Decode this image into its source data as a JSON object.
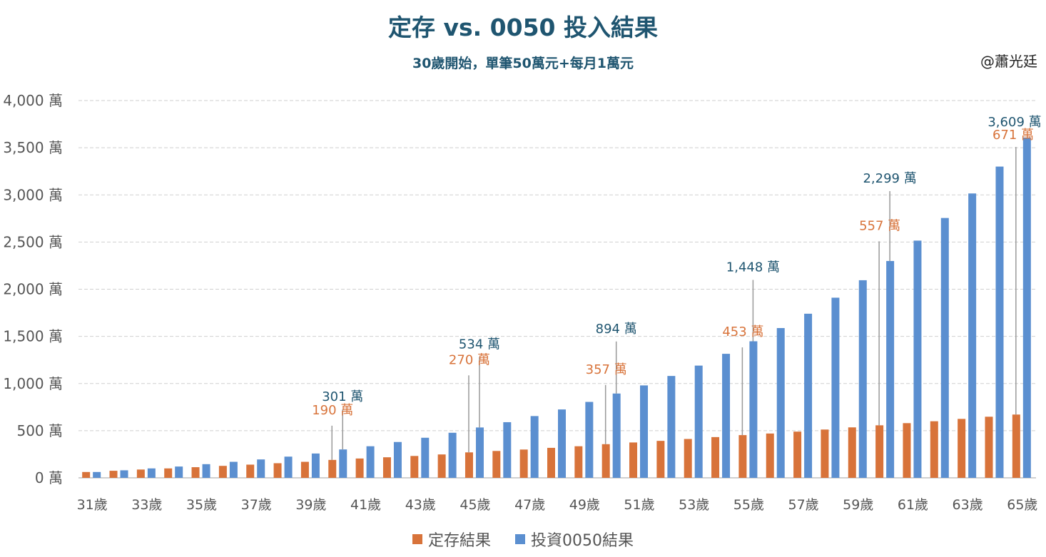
{
  "chart_data": {
    "type": "bar",
    "title": "定存 vs. 0050 投入結果",
    "subtitle": "30歲開始，單筆50萬元+每月1萬元",
    "watermark": "@蕭光廷",
    "unit": "萬",
    "categories": [
      "31歲",
      "32歲",
      "33歲",
      "34歲",
      "35歲",
      "36歲",
      "37歲",
      "38歲",
      "39歲",
      "40歲",
      "41歲",
      "42歲",
      "43歲",
      "44歲",
      "45歲",
      "46歲",
      "47歲",
      "48歲",
      "49歲",
      "50歲",
      "51歲",
      "52歲",
      "53歲",
      "54歲",
      "55歲",
      "56歲",
      "57歲",
      "58歲",
      "59歲",
      "60歲",
      "61歲",
      "62歲",
      "63歲",
      "64歲",
      "65歲"
    ],
    "series": [
      {
        "name": "定存結果",
        "color": "#D8733A",
        "values": [
          62,
          75,
          88,
          100,
          113,
          127,
          140,
          155,
          170,
          190,
          205,
          218,
          232,
          248,
          270,
          285,
          300,
          318,
          335,
          357,
          375,
          392,
          412,
          432,
          453,
          470,
          490,
          512,
          535,
          557,
          580,
          600,
          625,
          648,
          671
        ]
      },
      {
        "name": "投資0050結果",
        "color": "#5B8FD0",
        "values": [
          62,
          80,
          100,
          120,
          145,
          170,
          195,
          225,
          258,
          301,
          335,
          380,
          425,
          478,
          534,
          590,
          655,
          725,
          805,
          894,
          980,
          1080,
          1190,
          1315,
          1448,
          1588,
          1740,
          1910,
          2095,
          2299,
          2515,
          2755,
          3015,
          3300,
          3609
        ]
      }
    ],
    "data_labels": [
      {
        "category": "40歲",
        "orange": "190 萬",
        "blue": "301 萬"
      },
      {
        "category": "45歲",
        "orange": "270 萬",
        "blue": "534 萬"
      },
      {
        "category": "50歲",
        "orange": "357 萬",
        "blue": "894 萬"
      },
      {
        "category": "55歲",
        "orange": "453 萬",
        "blue": "1,448 萬"
      },
      {
        "category": "60歲",
        "orange": "557 萬",
        "blue": "2,299 萬"
      },
      {
        "category": "65歲",
        "orange": "671 萬",
        "blue": "3,609 萬"
      }
    ],
    "ylim": [
      0,
      4000
    ],
    "yticks": [
      0,
      500,
      1000,
      1500,
      2000,
      2500,
      3000,
      3500,
      4000
    ],
    "ytick_labels": [
      "0 萬",
      "500 萬",
      "1,000 萬",
      "1,500 萬",
      "2,000 萬",
      "2,500 萬",
      "3,000 萬",
      "3,500 萬",
      "4,000 萬"
    ],
    "xtick_labels_shown_every": 2,
    "grid": "horizontal dashed",
    "legend": "bottom",
    "label_colors": {
      "orange": "#D8733A",
      "blue": "#1F5570"
    }
  }
}
